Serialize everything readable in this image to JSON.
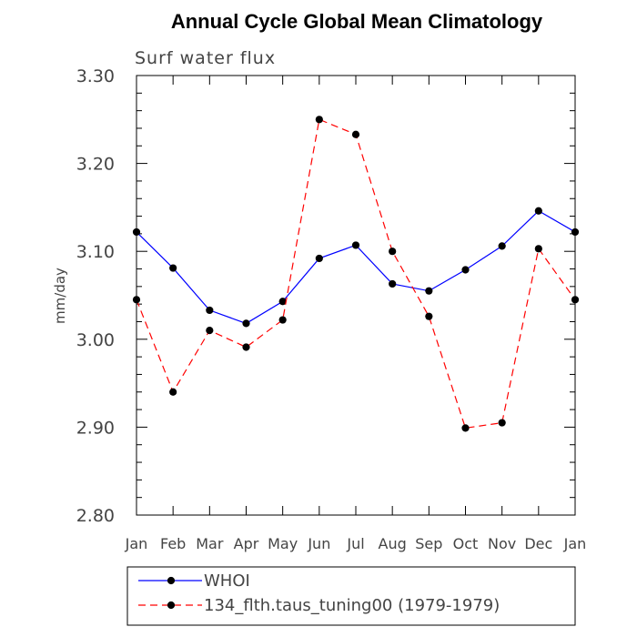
{
  "chart_data": {
    "type": "line",
    "title": "Annual Cycle Global Mean Climatology",
    "subtitle": "Surf water flux",
    "xlabel": "",
    "ylabel": "mm/day",
    "categories": [
      "Jan",
      "Feb",
      "Mar",
      "Apr",
      "May",
      "Jun",
      "Jul",
      "Aug",
      "Sep",
      "Oct",
      "Nov",
      "Dec",
      "Jan"
    ],
    "ylim": [
      2.8,
      3.3
    ],
    "yticks": [
      "2.80",
      "2.90",
      "3.00",
      "3.10",
      "3.20",
      "3.30"
    ],
    "grid": false,
    "legend_position": "bottom",
    "series": [
      {
        "name": "WHOI",
        "color": "#0000ff",
        "dash": "solid",
        "values": [
          3.122,
          3.081,
          3.033,
          3.018,
          3.043,
          3.092,
          3.107,
          3.063,
          3.055,
          3.079,
          3.106,
          3.146,
          3.122
        ]
      },
      {
        "name": "134_flth.taus_tuning00 (1979-1979)",
        "color": "#ff0000",
        "dash": "dashed",
        "values": [
          3.045,
          2.94,
          3.01,
          2.991,
          3.022,
          3.25,
          3.233,
          3.1,
          3.026,
          2.899,
          2.905,
          3.103,
          3.045
        ]
      }
    ]
  }
}
